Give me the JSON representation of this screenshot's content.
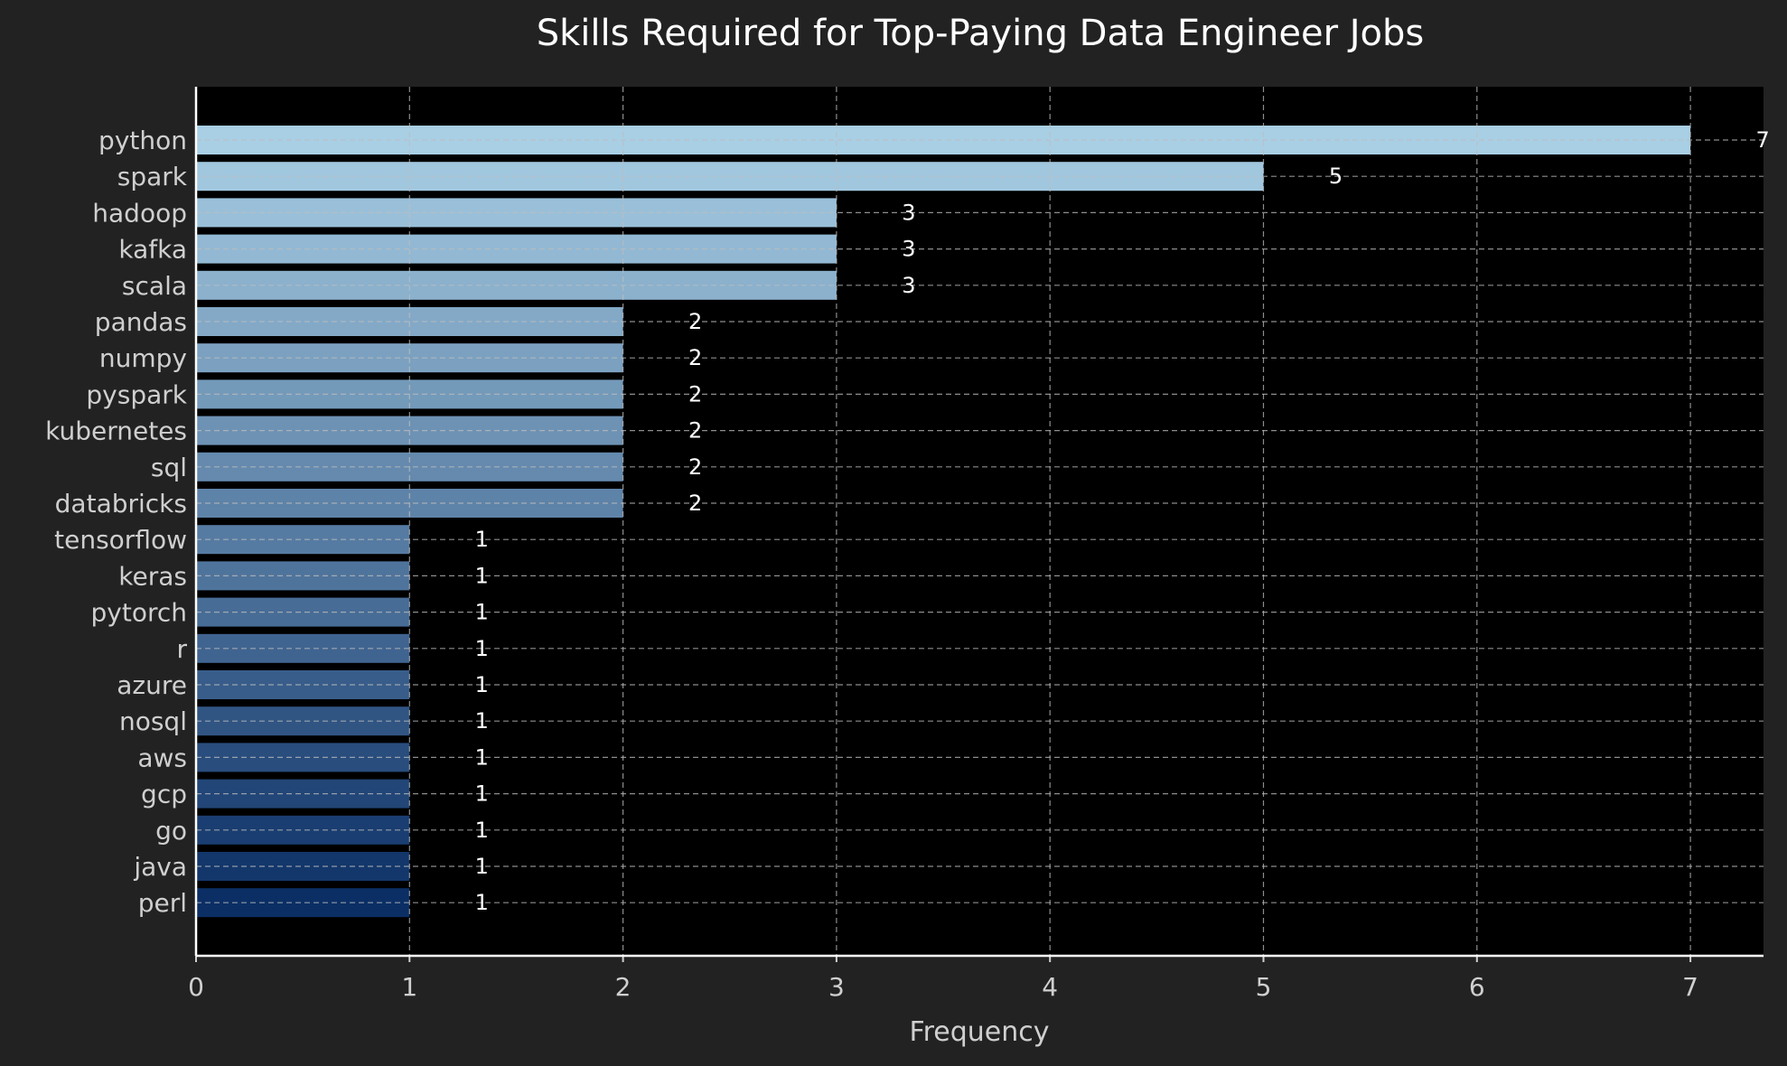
{
  "chart_data": {
    "type": "bar",
    "orientation": "horizontal",
    "title": "Skills Required for Top-Paying Data Engineer Jobs",
    "xlabel": "Frequency",
    "ylabel": "",
    "categories": [
      "python",
      "spark",
      "hadoop",
      "kafka",
      "scala",
      "pandas",
      "numpy",
      "pyspark",
      "kubernetes",
      "sql",
      "databricks",
      "tensorflow",
      "keras",
      "pytorch",
      "r",
      "azure",
      "nosql",
      "aws",
      "gcp",
      "go",
      "java",
      "perl"
    ],
    "values": [
      7,
      5,
      3,
      3,
      3,
      2,
      2,
      2,
      2,
      2,
      2,
      1,
      1,
      1,
      1,
      1,
      1,
      1,
      1,
      1,
      1,
      1
    ],
    "xlim": [
      0,
      7.35
    ],
    "xticks": [
      0,
      1,
      2,
      3,
      4,
      5,
      6,
      7
    ],
    "grid": true,
    "colormap": "Blues (light to dark, top to bottom)",
    "colors": {
      "background": "#222222",
      "plot_background": "#000000",
      "bar_top": "#a9cfe5",
      "bar_bottom": "#0b2f65",
      "grid": "#bdbdbd",
      "text": "#cfcfcf",
      "title": "#ffffff"
    }
  }
}
